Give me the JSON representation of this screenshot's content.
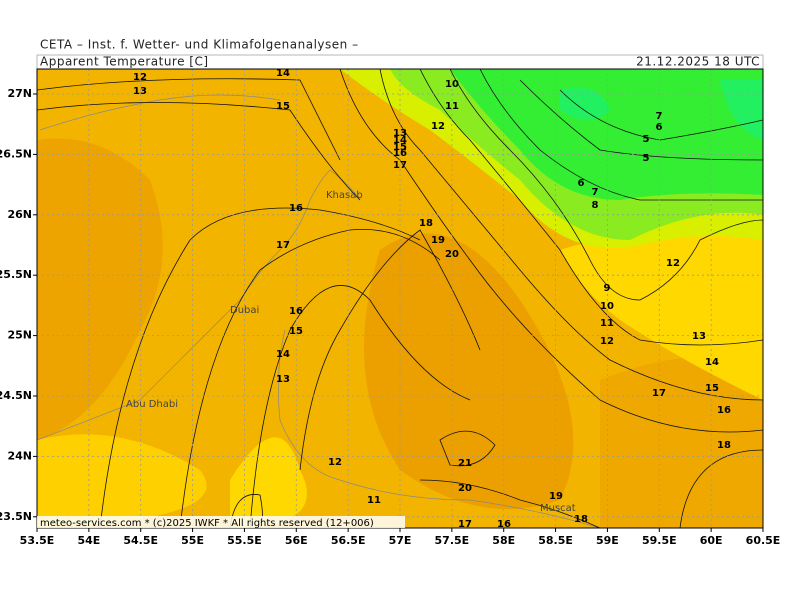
{
  "header": {
    "institute": "CETA – Inst. f. Wetter- und Klimafolgenanalysen –",
    "parameter": "Apparent Temperature [C]",
    "valid_time": "21.12.2025 18 UTC"
  },
  "footer": "meteo-services.com * (c)2025 IWKF * All rights reserved (12+006)",
  "x_labels": [
    "53.5E",
    "54E",
    "54.5E",
    "55E",
    "55.5E",
    "56E",
    "56.5E",
    "57E",
    "57.5E",
    "58E",
    "58.5E",
    "59E",
    "59.5E",
    "60E",
    "60.5E"
  ],
  "y_labels": [
    "27N",
    "26.5N",
    "26N",
    "25.5N",
    "25N",
    "24.5N",
    "24N",
    "23.5N"
  ],
  "cities": [
    "Khasab",
    "Dubai",
    "Abu Dhabi",
    "Muscat"
  ],
  "contour_labels": [
    12,
    13,
    14,
    15,
    10,
    11,
    12,
    13,
    14,
    15,
    16,
    17,
    7,
    6,
    5,
    5,
    6,
    7,
    8,
    16,
    17,
    18,
    19,
    20,
    12,
    9,
    10,
    11,
    12,
    16,
    15,
    14,
    13,
    13,
    14,
    15,
    17,
    16,
    18,
    12,
    21,
    20,
    19,
    11,
    18,
    17,
    16
  ]
}
